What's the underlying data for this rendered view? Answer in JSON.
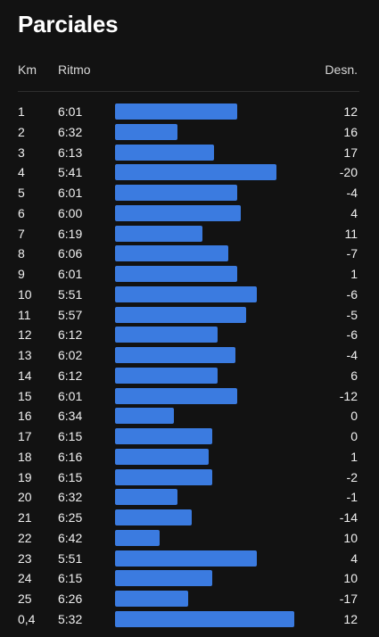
{
  "title": "Parciales",
  "headers": {
    "km": "Km",
    "pace": "Ritmo",
    "elevation": "Desn."
  },
  "colors": {
    "background": "#121212",
    "bar": "#3b7be0",
    "text": "#f0f0f0"
  },
  "splits": [
    {
      "km": "1",
      "pace": "6:01",
      "elevation": "12",
      "bar_fraction": 0.68
    },
    {
      "km": "2",
      "pace": "6:32",
      "elevation": "16",
      "bar_fraction": 0.35
    },
    {
      "km": "3",
      "pace": "6:13",
      "elevation": "17",
      "bar_fraction": 0.55
    },
    {
      "km": "4",
      "pace": "5:41",
      "elevation": "-20",
      "bar_fraction": 0.9
    },
    {
      "km": "5",
      "pace": "6:01",
      "elevation": "-4",
      "bar_fraction": 0.68
    },
    {
      "km": "6",
      "pace": "6:00",
      "elevation": "4",
      "bar_fraction": 0.7
    },
    {
      "km": "7",
      "pace": "6:19",
      "elevation": "11",
      "bar_fraction": 0.49
    },
    {
      "km": "8",
      "pace": "6:06",
      "elevation": "-7",
      "bar_fraction": 0.63
    },
    {
      "km": "9",
      "pace": "6:01",
      "elevation": "1",
      "bar_fraction": 0.68
    },
    {
      "km": "10",
      "pace": "5:51",
      "elevation": "-6",
      "bar_fraction": 0.79
    },
    {
      "km": "11",
      "pace": "5:57",
      "elevation": "-5",
      "bar_fraction": 0.73
    },
    {
      "km": "12",
      "pace": "6:12",
      "elevation": "-6",
      "bar_fraction": 0.57
    },
    {
      "km": "13",
      "pace": "6:02",
      "elevation": "-4",
      "bar_fraction": 0.67
    },
    {
      "km": "14",
      "pace": "6:12",
      "elevation": "6",
      "bar_fraction": 0.57
    },
    {
      "km": "15",
      "pace": "6:01",
      "elevation": "-12",
      "bar_fraction": 0.68
    },
    {
      "km": "16",
      "pace": "6:34",
      "elevation": "0",
      "bar_fraction": 0.33
    },
    {
      "km": "17",
      "pace": "6:15",
      "elevation": "0",
      "bar_fraction": 0.54
    },
    {
      "km": "18",
      "pace": "6:16",
      "elevation": "1",
      "bar_fraction": 0.52
    },
    {
      "km": "19",
      "pace": "6:15",
      "elevation": "-2",
      "bar_fraction": 0.54
    },
    {
      "km": "20",
      "pace": "6:32",
      "elevation": "-1",
      "bar_fraction": 0.35
    },
    {
      "km": "21",
      "pace": "6:25",
      "elevation": "-14",
      "bar_fraction": 0.43
    },
    {
      "km": "22",
      "pace": "6:42",
      "elevation": "10",
      "bar_fraction": 0.25
    },
    {
      "km": "23",
      "pace": "5:51",
      "elevation": "4",
      "bar_fraction": 0.79
    },
    {
      "km": "24",
      "pace": "6:15",
      "elevation": "10",
      "bar_fraction": 0.54
    },
    {
      "km": "25",
      "pace": "6:26",
      "elevation": "-17",
      "bar_fraction": 0.41
    },
    {
      "km": "0,4",
      "pace": "5:32",
      "elevation": "12",
      "bar_fraction": 1.0
    }
  ]
}
